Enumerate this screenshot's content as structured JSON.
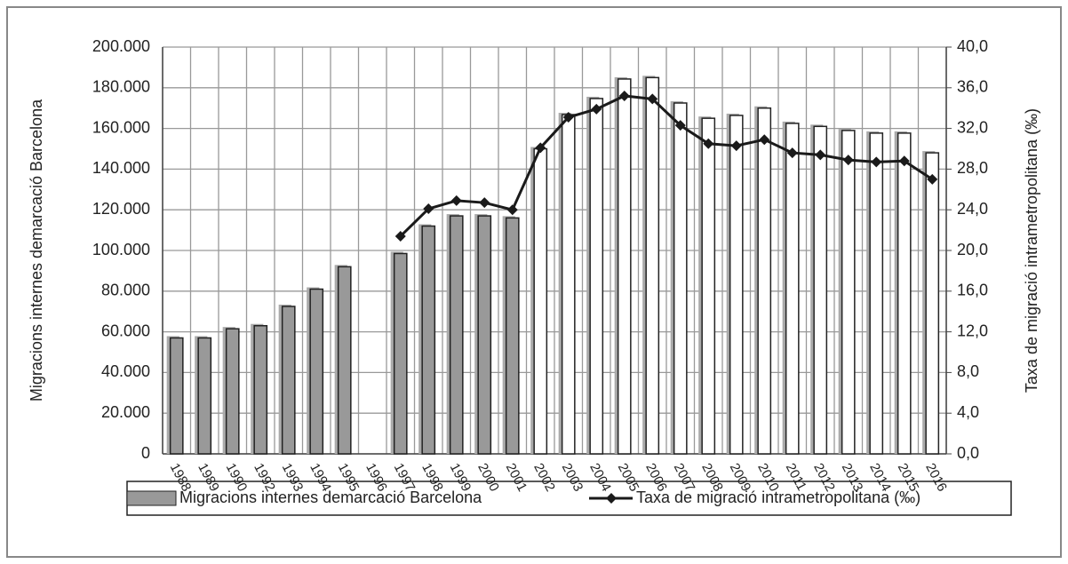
{
  "chart_data": {
    "type": "bar-line",
    "categories": [
      "1988",
      "1989",
      "1990",
      "1992",
      "1993",
      "1994",
      "1995",
      "1996",
      "1997",
      "1998",
      "1999",
      "2000",
      "2001",
      "2002",
      "2003",
      "2004",
      "2005",
      "2006",
      "2007",
      "2008",
      "2009",
      "2010",
      "2011",
      "2012",
      "2013",
      "2014",
      "2015",
      "2016"
    ],
    "series": [
      {
        "name": "Migracions internes demarcació Barcelona",
        "type": "bar",
        "color": "#999999",
        "values": [
          57000,
          57000,
          61500,
          63000,
          72500,
          81000,
          92000,
          null,
          98500,
          112000,
          117000,
          117000,
          116000,
          150000,
          166800,
          174700,
          184300,
          185000,
          172500,
          165000,
          166400,
          170000,
          162500,
          161000,
          159000,
          157700,
          157700,
          148000
        ]
      },
      {
        "name": "Taxa de migració intrametropolitana (‰)",
        "type": "line",
        "axis": "y2",
        "color": "#1a1a1a",
        "values": [
          null,
          null,
          null,
          null,
          null,
          null,
          null,
          null,
          21.4,
          24.1,
          24.9,
          24.7,
          24.0,
          30.1,
          33.1,
          33.9,
          35.2,
          34.9,
          32.3,
          30.5,
          30.3,
          30.9,
          29.6,
          29.4,
          28.9,
          28.7,
          28.8,
          27.0
        ]
      }
    ],
    "y_label": "Migracions internes demarcació Barcelona",
    "y2_label": "Taxa de migració intrametropolitana (‰)",
    "ylim": [
      0,
      200000
    ],
    "yticks": [
      0,
      {
        "value": 20000,
        "label": "20.000"
      },
      {
        "value": 40000,
        "label": "40.000"
      },
      {
        "value": 60000,
        "label": "60.000"
      },
      {
        "value": 80000,
        "label": "80.000"
      },
      {
        "value": 100000,
        "label": "100.000"
      },
      {
        "value": 120000,
        "label": "120.000"
      },
      {
        "value": 140000,
        "label": "140.000"
      },
      {
        "value": 160000,
        "label": "160.000"
      },
      {
        "value": 180000,
        "label": "180.000"
      },
      {
        "value": 200000,
        "label": "200.000"
      }
    ],
    "y2lim": [
      0,
      40
    ],
    "y2ticks": [
      {
        "value": 0,
        "label": "0,0"
      },
      {
        "value": 4,
        "label": "4,0"
      },
      {
        "value": 8,
        "label": "8,0"
      },
      {
        "value": 12,
        "label": "12,0"
      },
      {
        "value": 16,
        "label": "16,0"
      },
      {
        "value": 20,
        "label": "20,0"
      },
      {
        "value": 24,
        "label": "24,0"
      },
      {
        "value": 28,
        "label": "28,0"
      },
      {
        "value": 32,
        "label": "32,0"
      },
      {
        "value": 36,
        "label": "36,0"
      },
      {
        "value": 40,
        "label": "40,0"
      }
    ],
    "grid": true,
    "legend": "bottom"
  }
}
